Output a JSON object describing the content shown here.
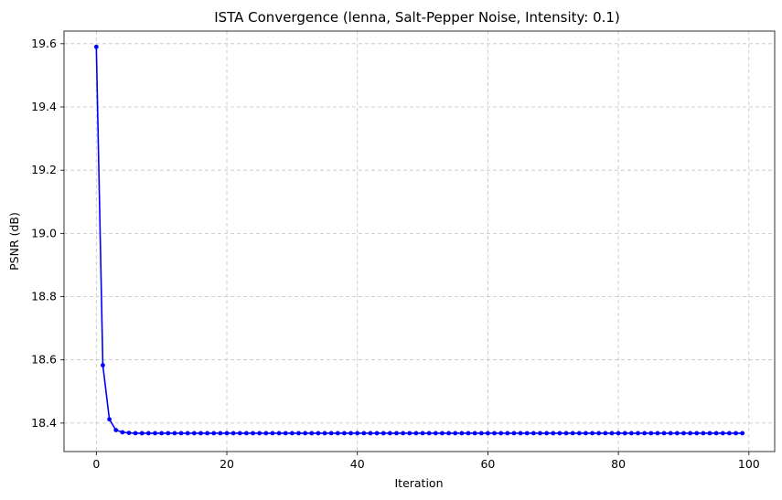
{
  "chart_data": {
    "type": "line",
    "title": "ISTA Convergence (lenna, Salt-Pepper Noise, Intensity: 0.1)",
    "xlabel": "Iteration",
    "ylabel": "PSNR (dB)",
    "xlim": [
      -4.95,
      103.95
    ],
    "ylim": [
      18.31,
      19.64
    ],
    "xticks": [
      0,
      20,
      40,
      60,
      80,
      100
    ],
    "xtick_labels": [
      "0",
      "20",
      "40",
      "60",
      "80",
      "100"
    ],
    "yticks": [
      18.4,
      18.6,
      18.8,
      19.0,
      19.2,
      19.4,
      19.6
    ],
    "ytick_labels": [
      "18.4",
      "18.6",
      "18.8",
      "19.0",
      "19.2",
      "19.4",
      "19.6"
    ],
    "grid": true,
    "series": [
      {
        "color": "#0000ff",
        "marker": "circle",
        "x_start": 0,
        "x_end": 99,
        "head_values": [
          19.59,
          18.583,
          18.412,
          18.378,
          18.371,
          18.369
        ],
        "plateau_value": 18.368
      }
    ]
  }
}
